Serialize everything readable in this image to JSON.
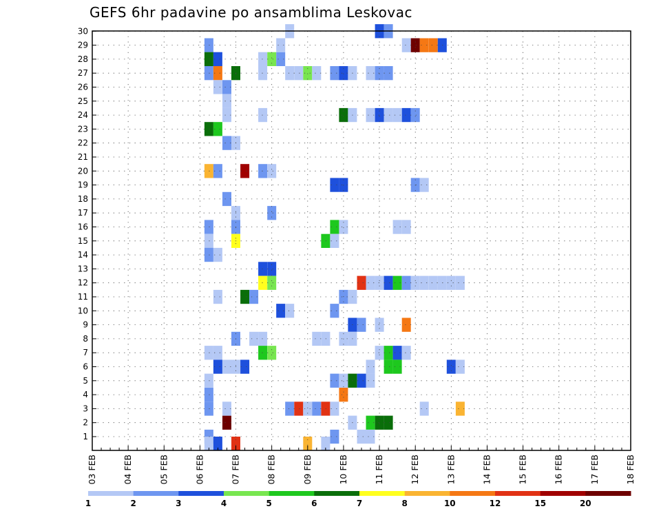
{
  "chart_data": {
    "type": "heatmap",
    "title": "GEFS 6hr padavine po ansamblima Leskovac",
    "xlabel": "",
    "ylabel": "",
    "x_ticks": [
      "03 FEB",
      "04 FEB",
      "05 FEB",
      "06 FEB",
      "07 FEB",
      "08 FEB",
      "09 FEB",
      "10 FEB",
      "11 FEB",
      "12 FEB",
      "13 FEB",
      "14 FEB",
      "15 FEB",
      "16 FEB",
      "17 FEB",
      "18 FEB"
    ],
    "y_ticks": [
      "1",
      "2",
      "3",
      "4",
      "5",
      "6",
      "7",
      "8",
      "9",
      "10",
      "11",
      "12",
      "13",
      "14",
      "15",
      "16",
      "17",
      "18",
      "19",
      "20",
      "21",
      "22",
      "23",
      "24",
      "25",
      "26",
      "27",
      "28",
      "29",
      "30"
    ],
    "x_range_steps": [
      0,
      60
    ],
    "grid": true,
    "legend": {
      "placement": "bottom",
      "labels": [
        "1",
        "2",
        "3",
        "4",
        "5",
        "6",
        "7",
        "8",
        "10",
        "12",
        "15",
        "20"
      ],
      "colors": [
        "#b4c8f5",
        "#6e96f0",
        "#1e50dc",
        "#78e650",
        "#1ec81e",
        "#0a6e0a",
        "#ffff1e",
        "#fab432",
        "#f57814",
        "#e13214",
        "#a00000",
        "#6e0000"
      ]
    },
    "cells": [
      [
        11,
        29,
        2
      ],
      [
        11,
        28,
        6
      ],
      [
        12,
        28,
        3
      ],
      [
        17,
        28,
        1
      ],
      [
        18,
        28,
        4
      ],
      [
        19,
        28,
        2
      ],
      [
        11,
        27,
        2
      ],
      [
        12,
        27,
        9
      ],
      [
        14,
        27,
        6
      ],
      [
        17,
        27,
        1
      ],
      [
        20,
        27,
        1
      ],
      [
        21,
        27,
        1
      ],
      [
        22,
        27,
        4
      ],
      [
        23,
        27,
        1
      ],
      [
        25,
        27,
        2
      ],
      [
        26,
        27,
        3
      ],
      [
        27,
        27,
        1
      ],
      [
        29,
        27,
        1
      ],
      [
        30,
        27,
        2
      ],
      [
        31,
        27,
        2
      ],
      [
        12,
        26,
        1
      ],
      [
        13,
        26,
        2
      ],
      [
        13,
        25,
        1
      ],
      [
        13,
        24,
        1
      ],
      [
        17,
        24,
        1
      ],
      [
        26,
        24,
        6
      ],
      [
        27,
        24,
        1
      ],
      [
        29,
        24,
        1
      ],
      [
        30,
        24,
        3
      ],
      [
        31,
        24,
        1
      ],
      [
        32,
        24,
        1
      ],
      [
        33,
        24,
        3
      ],
      [
        34,
        24,
        2
      ],
      [
        11,
        23,
        6
      ],
      [
        12,
        23,
        5
      ],
      [
        13,
        22,
        2
      ],
      [
        14,
        22,
        1
      ],
      [
        11,
        20,
        8
      ],
      [
        12,
        20,
        2
      ],
      [
        15,
        20,
        11
      ],
      [
        17,
        20,
        2
      ],
      [
        18,
        20,
        1
      ],
      [
        13,
        18,
        2
      ],
      [
        14,
        17,
        1
      ],
      [
        18,
        17,
        2
      ],
      [
        11,
        16,
        2
      ],
      [
        14,
        16,
        2
      ],
      [
        11,
        15,
        1
      ],
      [
        14,
        15,
        7
      ],
      [
        11,
        14,
        2
      ],
      [
        12,
        14,
        1
      ],
      [
        17,
        13,
        3
      ],
      [
        18,
        13,
        3
      ],
      [
        17,
        12,
        7
      ],
      [
        18,
        12,
        4
      ],
      [
        12,
        11,
        1
      ],
      [
        15,
        11,
        6
      ],
      [
        16,
        11,
        2
      ],
      [
        19,
        10,
        3
      ],
      [
        20,
        10,
        1
      ],
      [
        14,
        8,
        2
      ],
      [
        16,
        8,
        1
      ],
      [
        17,
        8,
        1
      ],
      [
        11,
        7,
        1
      ],
      [
        12,
        7,
        1
      ],
      [
        17,
        7,
        5
      ],
      [
        18,
        7,
        4
      ],
      [
        12,
        6,
        3
      ],
      [
        13,
        6,
        1
      ],
      [
        14,
        6,
        1
      ],
      [
        15,
        6,
        3
      ],
      [
        11,
        5,
        1
      ],
      [
        11,
        4,
        2
      ],
      [
        11,
        3,
        2
      ],
      [
        11,
        1,
        2
      ],
      [
        20,
        3,
        2
      ],
      [
        21,
        3,
        10
      ],
      [
        22,
        3,
        1
      ],
      [
        13,
        2,
        12
      ],
      [
        19,
        29,
        1
      ],
      [
        20,
        30,
        1
      ],
      [
        11,
        0.5,
        1
      ]
    ],
    "cells_late": [
      [
        30,
        30,
        3
      ],
      [
        31,
        30,
        2
      ],
      [
        33,
        29,
        1
      ],
      [
        34,
        29,
        12
      ],
      [
        35,
        29,
        9
      ],
      [
        36,
        29,
        9
      ],
      [
        37,
        29,
        3
      ],
      [
        25,
        19,
        3
      ],
      [
        26,
        19,
        3
      ],
      [
        34,
        19,
        2
      ],
      [
        35,
        19,
        1
      ],
      [
        26,
        16,
        1
      ],
      [
        32,
        16,
        1
      ],
      [
        33,
        16,
        1
      ],
      [
        25,
        16,
        5
      ],
      [
        24,
        15,
        5
      ],
      [
        25,
        15,
        1
      ],
      [
        28,
        12,
        10
      ],
      [
        29,
        12,
        1
      ],
      [
        30,
        12,
        1
      ],
      [
        31,
        12,
        3
      ],
      [
        32,
        12,
        5
      ],
      [
        33,
        12,
        2
      ],
      [
        34,
        12,
        1
      ],
      [
        35,
        12,
        1
      ],
      [
        36,
        12,
        1
      ],
      [
        37,
        12,
        1
      ],
      [
        38,
        12,
        1
      ],
      [
        39,
        12,
        1
      ],
      [
        26,
        11,
        2
      ],
      [
        27,
        11,
        1
      ],
      [
        25,
        10,
        2
      ],
      [
        27,
        9,
        3
      ],
      [
        28,
        9,
        2
      ],
      [
        30,
        9,
        1
      ],
      [
        33,
        9,
        9
      ],
      [
        23,
        8,
        1
      ],
      [
        24,
        8,
        1
      ],
      [
        26,
        8,
        1
      ],
      [
        27,
        8,
        1
      ],
      [
        30,
        7,
        1
      ],
      [
        31,
        7,
        5
      ],
      [
        32,
        7,
        3
      ],
      [
        33,
        7,
        1
      ],
      [
        29,
        6,
        1
      ],
      [
        31,
        6,
        5
      ],
      [
        32,
        6,
        5
      ],
      [
        38,
        6,
        3
      ],
      [
        39,
        6,
        1
      ],
      [
        25,
        5,
        2
      ],
      [
        26,
        5,
        1
      ],
      [
        27,
        5,
        6
      ],
      [
        28,
        5,
        3
      ],
      [
        29,
        5,
        1
      ],
      [
        26,
        4,
        9
      ],
      [
        23,
        3,
        2
      ],
      [
        24,
        3,
        10
      ],
      [
        25,
        3,
        1
      ],
      [
        35,
        3,
        1
      ],
      [
        39,
        3,
        8
      ],
      [
        27,
        2,
        1
      ],
      [
        29,
        2,
        5
      ],
      [
        30,
        2,
        6
      ],
      [
        31,
        2,
        6
      ],
      [
        25,
        1,
        2
      ],
      [
        28,
        1,
        1
      ],
      [
        29,
        1,
        1
      ],
      [
        24,
        0.5,
        1
      ],
      [
        22,
        0.5,
        8
      ],
      [
        14,
        0.5,
        10
      ],
      [
        12,
        0.5,
        3
      ],
      [
        13,
        3,
        1
      ]
    ]
  }
}
